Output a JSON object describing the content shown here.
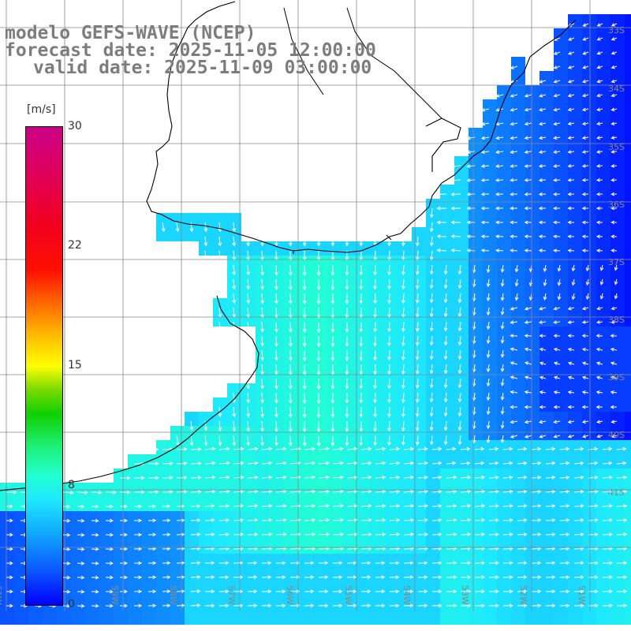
{
  "title": {
    "line1": "modelo GEFS-WAVE (NCEP)",
    "line2": "forecast date: 2025-11-05 12:00:00",
    "line3": "valid date: 2025-11-09 03:00:00"
  },
  "colorbar": {
    "unit": "[m/s]",
    "ticks": [
      "30",
      "22",
      "15",
      "8",
      "0"
    ],
    "min": 0,
    "max": 30,
    "colors": [
      "#0000ff",
      "#11a8ff",
      "#1ee8ff",
      "#10d000",
      "#ffff00",
      "#ff6a00",
      "#ff1000",
      "#cc0088"
    ]
  },
  "map": {
    "land_color": "#ffffff",
    "grid_color": "#888888",
    "coast_color": "#000000",
    "arrow_color": "#ffffff",
    "lat_labels": [
      "33S",
      "34S",
      "35S",
      "36S",
      "37S",
      "38S",
      "39S",
      "40S",
      "41S"
    ],
    "lon_labels": [
      "61W",
      "60W",
      "59W",
      "58W",
      "57W",
      "56W",
      "55W",
      "54W",
      "53W",
      "52W",
      "51W"
    ]
  }
}
